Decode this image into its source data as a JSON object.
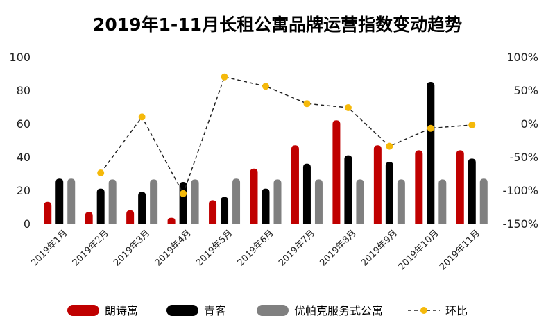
{
  "chart_data": {
    "type": "bar",
    "title": "2019年1-11月长租公寓品牌运营指数变动趋势",
    "categories": [
      "2019年1月",
      "2019年2月",
      "2019年3月",
      "2019年4月",
      "2019年5月",
      "2019年6月",
      "2019年7月",
      "2019年8月",
      "2019年9月",
      "2019年10月",
      "2019年11月"
    ],
    "series": [
      {
        "name": "朗诗寓",
        "type": "bar",
        "axis": "left",
        "color": "#c00000",
        "values": [
          13,
          7,
          8,
          3.5,
          14,
          33,
          47,
          62,
          47,
          44,
          44
        ]
      },
      {
        "name": "青客",
        "type": "bar",
        "axis": "left",
        "color": "#000000",
        "values": [
          27,
          21,
          19,
          25,
          16,
          21,
          36,
          41,
          37,
          85,
          39
        ]
      },
      {
        "name": "优帕克服务式公寓",
        "type": "bar",
        "axis": "left",
        "color": "#808080",
        "values": [
          27,
          26.5,
          26.5,
          26.5,
          27,
          26.5,
          26.5,
          26.5,
          26.5,
          26.5,
          27
        ]
      },
      {
        "name": "环比",
        "type": "line",
        "axis": "right",
        "color": "#f5b90a",
        "line_style": "dashed",
        "values": [
          null,
          -74,
          10,
          -105,
          70,
          56,
          30,
          24,
          -34,
          -7,
          -2
        ]
      }
    ],
    "y_left": {
      "min": 0,
      "max": 100,
      "ticks": [
        "0",
        "20",
        "40",
        "60",
        "80",
        "100"
      ]
    },
    "y_right": {
      "min": -150,
      "max": 100,
      "ticks": [
        "-150%",
        "-100%",
        "-50%",
        "0%",
        "50%",
        "100%"
      ]
    },
    "grid": false,
    "legend_position": "bottom"
  }
}
